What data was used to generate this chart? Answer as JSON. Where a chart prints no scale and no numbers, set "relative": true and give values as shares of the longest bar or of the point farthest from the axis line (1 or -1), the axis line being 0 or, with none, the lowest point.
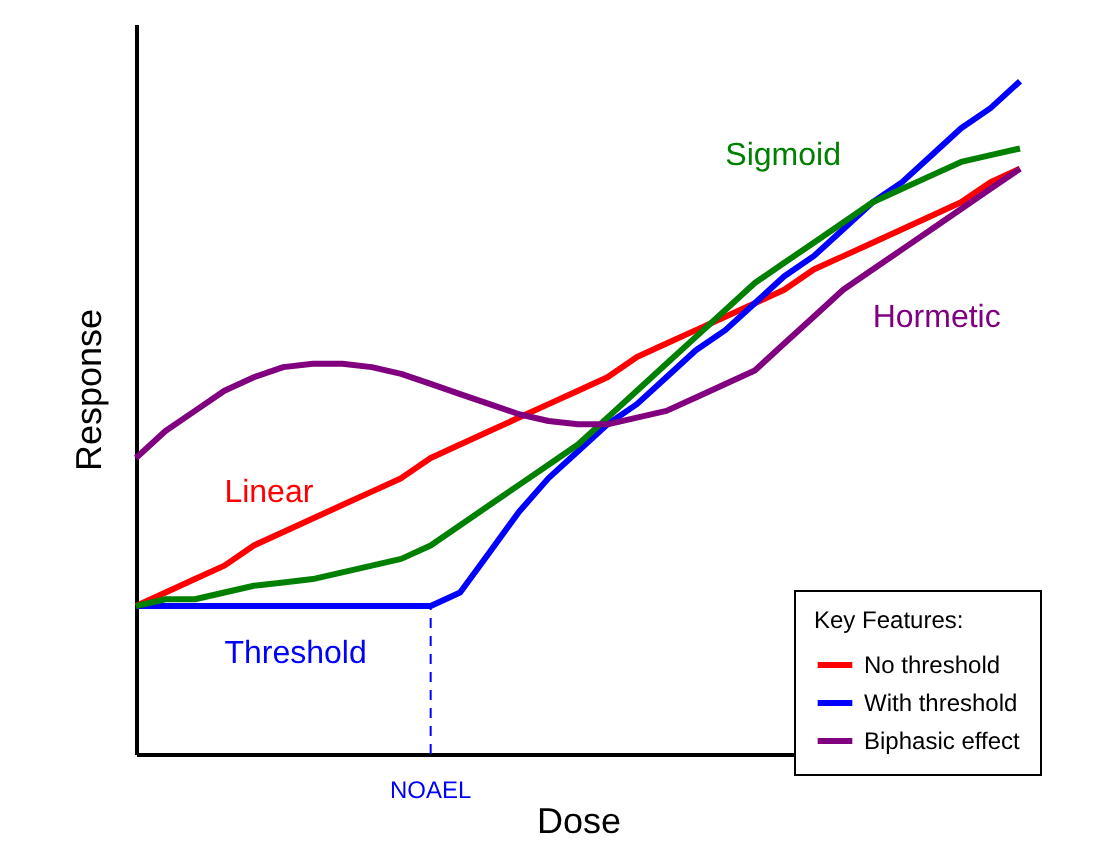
{
  "chart_data": {
    "type": "line",
    "relative": true,
    "xlabel": "Dose",
    "ylabel": "Response",
    "legend_title": "Key Features:",
    "legend": "bottom right",
    "grid": false,
    "marker": "none",
    "line_style": "solid",
    "categories": [
      null,
      null,
      null,
      null,
      null,
      null,
      null,
      null,
      null,
      null,
      null,
      null,
      null,
      null,
      null,
      null,
      null,
      null,
      null,
      null,
      null,
      null,
      null,
      null,
      null,
      null,
      null,
      null,
      null,
      null,
      null
    ],
    "series": [
      {
        "name": "No threshold",
        "color": "#ff0000",
        "values": [
          0.22,
          0.24,
          0.26,
          0.28,
          0.31,
          0.33,
          0.35,
          0.37,
          0.39,
          0.41,
          0.44,
          0.46,
          0.48,
          0.5,
          0.52,
          0.54,
          0.56,
          0.59,
          0.61,
          0.63,
          0.65,
          0.67,
          0.69,
          0.72,
          0.74,
          0.76,
          0.78,
          0.8,
          0.82,
          0.85,
          0.87
        ]
      },
      {
        "name": "With threshold",
        "color": "#0000ff",
        "values": [
          0.22,
          0.22,
          0.22,
          0.22,
          0.22,
          0.22,
          0.22,
          0.22,
          0.22,
          0.22,
          0.22,
          0.24,
          0.3,
          0.36,
          0.41,
          0.45,
          0.49,
          0.52,
          0.56,
          0.6,
          0.63,
          0.67,
          0.71,
          0.74,
          0.78,
          0.82,
          0.85,
          0.89,
          0.93,
          0.96,
          1.0
        ]
      },
      {
        "color": "#008000",
        "values": [
          0.22,
          0.23,
          0.23,
          0.24,
          0.25,
          0.255,
          0.26,
          0.27,
          0.28,
          0.29,
          0.31,
          0.34,
          0.37,
          0.4,
          0.43,
          0.46,
          0.5,
          0.54,
          0.58,
          0.62,
          0.66,
          0.7,
          0.73,
          0.76,
          0.79,
          0.82,
          0.84,
          0.86,
          0.88,
          0.89,
          0.9
        ]
      },
      {
        "name": "Biphasic effect",
        "color": "#800080",
        "values": [
          0.44,
          0.48,
          0.51,
          0.54,
          0.56,
          0.575,
          0.58,
          0.58,
          0.575,
          0.565,
          0.55,
          0.535,
          0.52,
          0.505,
          0.495,
          0.49,
          0.49,
          0.5,
          0.51,
          0.53,
          0.55,
          0.57,
          0.61,
          0.65,
          0.69,
          0.72,
          0.75,
          0.78,
          0.81,
          0.84,
          0.87
        ]
      }
    ],
    "annotations": [
      "Linear",
      "Threshold",
      "Sigmoid",
      "Hormetic",
      "NOAEL"
    ]
  }
}
